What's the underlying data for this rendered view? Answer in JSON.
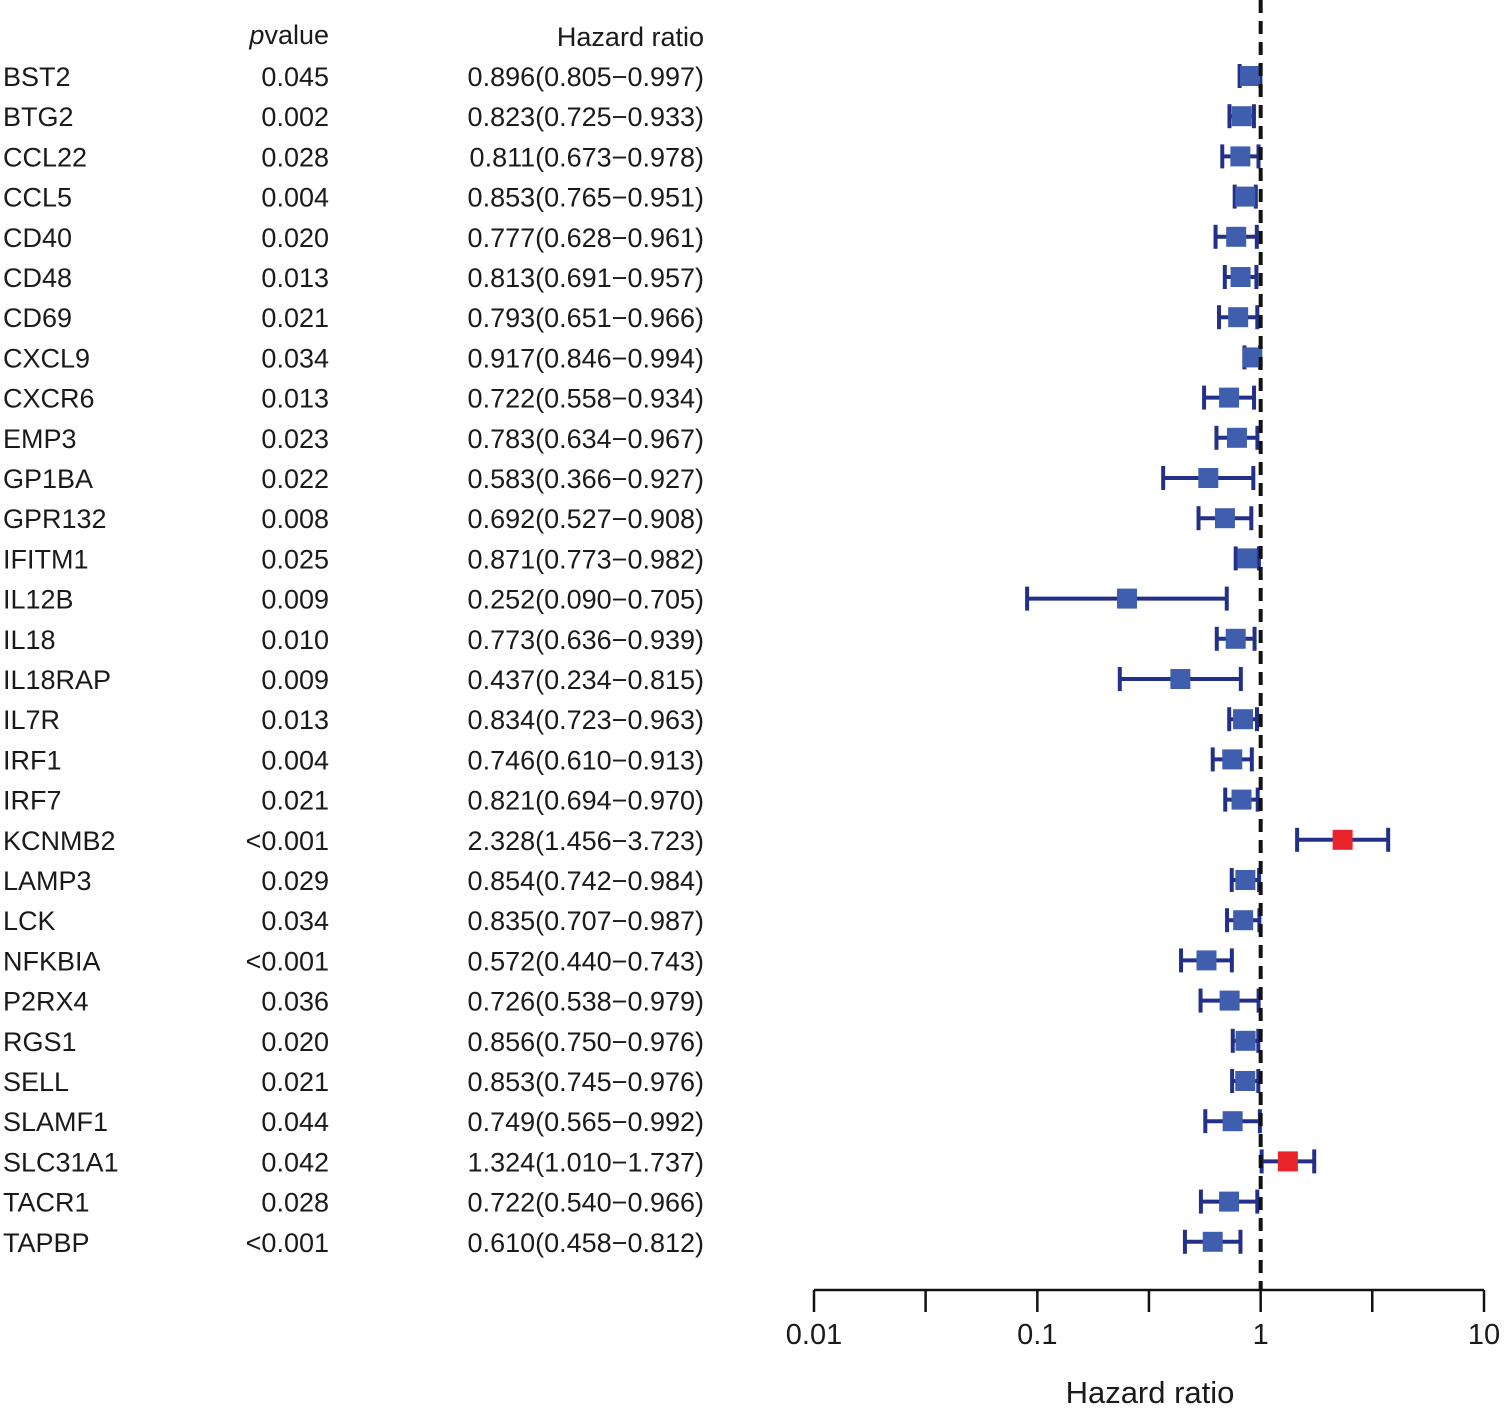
{
  "chart_data": {
    "type": "forest",
    "headers": {
      "pvalue_italic": "p",
      "pvalue_rest": "value",
      "hazard_ratio": "Hazard ratio"
    },
    "rows": [
      {
        "gene": "BST2",
        "pvalue": "0.045",
        "hr_text": "0.896(0.805−0.997)",
        "hr": 0.896,
        "lo": 0.805,
        "hi": 0.997
      },
      {
        "gene": "BTG2",
        "pvalue": "0.002",
        "hr_text": "0.823(0.725−0.933)",
        "hr": 0.823,
        "lo": 0.725,
        "hi": 0.933
      },
      {
        "gene": "CCL22",
        "pvalue": "0.028",
        "hr_text": "0.811(0.673−0.978)",
        "hr": 0.811,
        "lo": 0.673,
        "hi": 0.978
      },
      {
        "gene": "CCL5",
        "pvalue": "0.004",
        "hr_text": "0.853(0.765−0.951)",
        "hr": 0.853,
        "lo": 0.765,
        "hi": 0.951
      },
      {
        "gene": "CD40",
        "pvalue": "0.020",
        "hr_text": "0.777(0.628−0.961)",
        "hr": 0.777,
        "lo": 0.628,
        "hi": 0.961
      },
      {
        "gene": "CD48",
        "pvalue": "0.013",
        "hr_text": "0.813(0.691−0.957)",
        "hr": 0.813,
        "lo": 0.691,
        "hi": 0.957
      },
      {
        "gene": "CD69",
        "pvalue": "0.021",
        "hr_text": "0.793(0.651−0.966)",
        "hr": 0.793,
        "lo": 0.651,
        "hi": 0.966
      },
      {
        "gene": "CXCL9",
        "pvalue": "0.034",
        "hr_text": "0.917(0.846−0.994)",
        "hr": 0.917,
        "lo": 0.846,
        "hi": 0.994
      },
      {
        "gene": "CXCR6",
        "pvalue": "0.013",
        "hr_text": "0.722(0.558−0.934)",
        "hr": 0.722,
        "lo": 0.558,
        "hi": 0.934
      },
      {
        "gene": "EMP3",
        "pvalue": "0.023",
        "hr_text": "0.783(0.634−0.967)",
        "hr": 0.783,
        "lo": 0.634,
        "hi": 0.967
      },
      {
        "gene": "GP1BA",
        "pvalue": "0.022",
        "hr_text": "0.583(0.366−0.927)",
        "hr": 0.583,
        "lo": 0.366,
        "hi": 0.927
      },
      {
        "gene": "GPR132",
        "pvalue": "0.008",
        "hr_text": "0.692(0.527−0.908)",
        "hr": 0.692,
        "lo": 0.527,
        "hi": 0.908
      },
      {
        "gene": "IFITM1",
        "pvalue": "0.025",
        "hr_text": "0.871(0.773−0.982)",
        "hr": 0.871,
        "lo": 0.773,
        "hi": 0.982
      },
      {
        "gene": "IL12B",
        "pvalue": "0.009",
        "hr_text": "0.252(0.090−0.705)",
        "hr": 0.252,
        "lo": 0.09,
        "hi": 0.705
      },
      {
        "gene": "IL18",
        "pvalue": "0.010",
        "hr_text": "0.773(0.636−0.939)",
        "hr": 0.773,
        "lo": 0.636,
        "hi": 0.939
      },
      {
        "gene": "IL18RAP",
        "pvalue": "0.009",
        "hr_text": "0.437(0.234−0.815)",
        "hr": 0.437,
        "lo": 0.234,
        "hi": 0.815
      },
      {
        "gene": "IL7R",
        "pvalue": "0.013",
        "hr_text": "0.834(0.723−0.963)",
        "hr": 0.834,
        "lo": 0.723,
        "hi": 0.963
      },
      {
        "gene": "IRF1",
        "pvalue": "0.004",
        "hr_text": "0.746(0.610−0.913)",
        "hr": 0.746,
        "lo": 0.61,
        "hi": 0.913
      },
      {
        "gene": "IRF7",
        "pvalue": "0.021",
        "hr_text": "0.821(0.694−0.970)",
        "hr": 0.821,
        "lo": 0.694,
        "hi": 0.97
      },
      {
        "gene": "KCNMB2",
        "pvalue": "<0.001",
        "hr_text": "2.328(1.456−3.723)",
        "hr": 2.328,
        "lo": 1.456,
        "hi": 3.723
      },
      {
        "gene": "LAMP3",
        "pvalue": "0.029",
        "hr_text": "0.854(0.742−0.984)",
        "hr": 0.854,
        "lo": 0.742,
        "hi": 0.984
      },
      {
        "gene": "LCK",
        "pvalue": "0.034",
        "hr_text": "0.835(0.707−0.987)",
        "hr": 0.835,
        "lo": 0.707,
        "hi": 0.987
      },
      {
        "gene": "NFKBIA",
        "pvalue": "<0.001",
        "hr_text": "0.572(0.440−0.743)",
        "hr": 0.572,
        "lo": 0.44,
        "hi": 0.743
      },
      {
        "gene": "P2RX4",
        "pvalue": "0.036",
        "hr_text": "0.726(0.538−0.979)",
        "hr": 0.726,
        "lo": 0.538,
        "hi": 0.979
      },
      {
        "gene": "RGS1",
        "pvalue": "0.020",
        "hr_text": "0.856(0.750−0.976)",
        "hr": 0.856,
        "lo": 0.75,
        "hi": 0.976
      },
      {
        "gene": "SELL",
        "pvalue": "0.021",
        "hr_text": "0.853(0.745−0.976)",
        "hr": 0.853,
        "lo": 0.745,
        "hi": 0.976
      },
      {
        "gene": "SLAMF1",
        "pvalue": "0.044",
        "hr_text": "0.749(0.565−0.992)",
        "hr": 0.749,
        "lo": 0.565,
        "hi": 0.992
      },
      {
        "gene": "SLC31A1",
        "pvalue": "0.042",
        "hr_text": "1.324(1.010−1.737)",
        "hr": 1.324,
        "lo": 1.01,
        "hi": 1.737
      },
      {
        "gene": "TACR1",
        "pvalue": "0.028",
        "hr_text": "0.722(0.540−0.966)",
        "hr": 0.722,
        "lo": 0.54,
        "hi": 0.966
      },
      {
        "gene": "TAPBP",
        "pvalue": "<0.001",
        "hr_text": "0.610(0.458−0.812)",
        "hr": 0.61,
        "lo": 0.458,
        "hi": 0.812
      }
    ],
    "x_axis": {
      "scale": "log10",
      "range": [
        0.01,
        10
      ],
      "ticks": [
        0.01,
        0.1,
        1,
        10
      ],
      "tick_labels": [
        "0.01",
        "0.1",
        "1",
        "10"
      ],
      "minor_ticks": [
        0.0316,
        0.316,
        3.16
      ],
      "label": "Hazard ratio"
    },
    "reference_line": 1,
    "colors": {
      "protective": "#3f5fae",
      "risk": "#e8252b",
      "ci_line": "#23308a",
      "axis": "#111111"
    },
    "grid": false
  }
}
